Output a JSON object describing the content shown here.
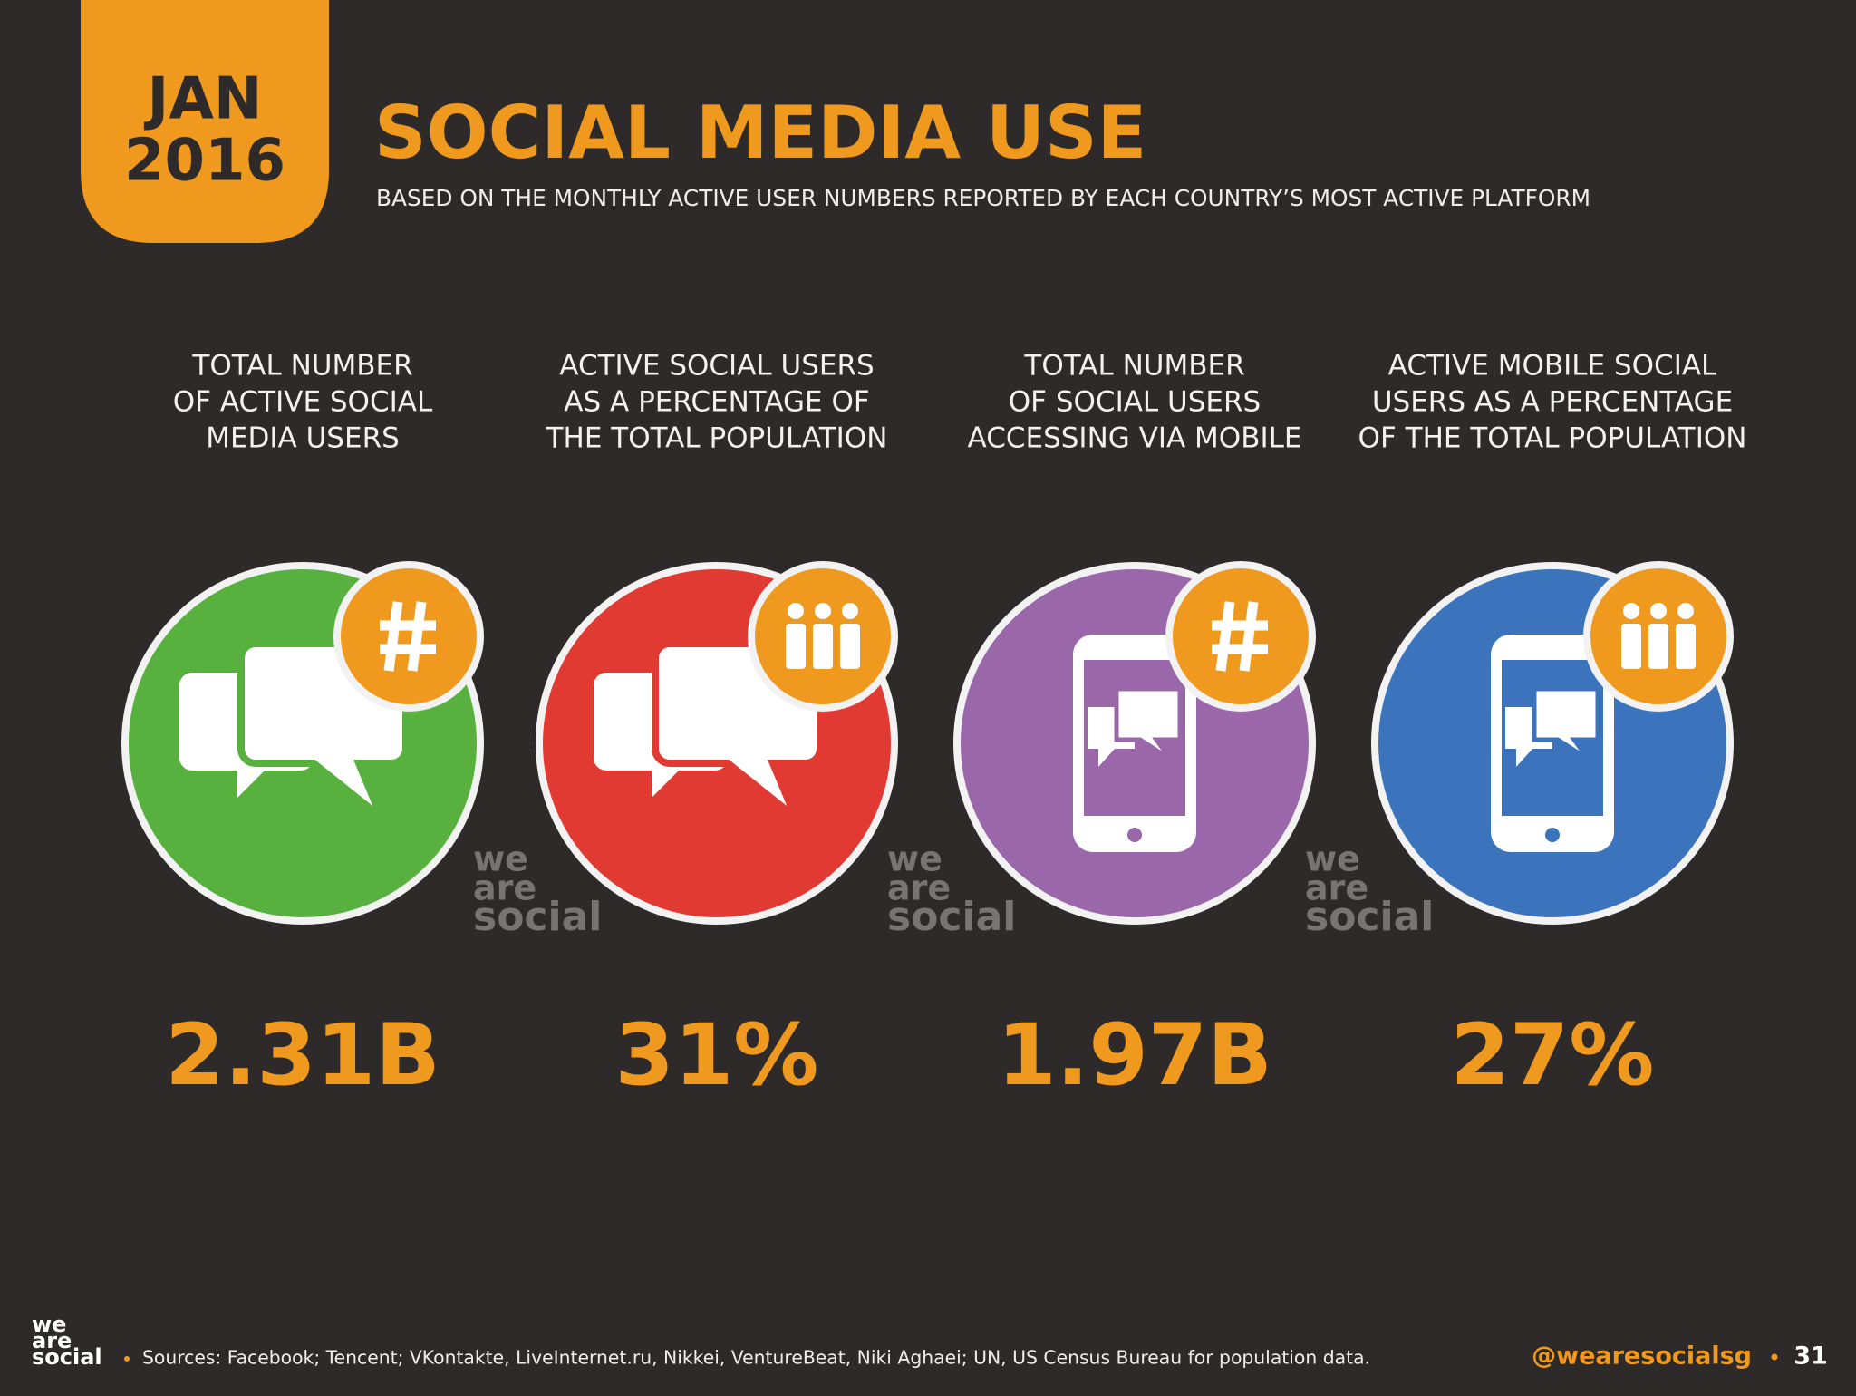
{
  "header": {
    "date": [
      "JAN",
      "2016"
    ],
    "title": "SOCIAL MEDIA USE",
    "subtitle": "BASED ON THE MONTHLY ACTIVE USER NUMBERS REPORTED BY EACH COUNTRY’S MOST ACTIVE PLATFORM"
  },
  "stats": [
    {
      "label": [
        "TOTAL NUMBER",
        "OF ACTIVE SOCIAL",
        "MEDIA USERS"
      ],
      "value": "2.31B"
    },
    {
      "label": [
        "ACTIVE SOCIAL USERS",
        "AS A PERCENTAGE OF",
        "THE TOTAL POPULATION"
      ],
      "value": "31%"
    },
    {
      "label": [
        "TOTAL NUMBER",
        "OF SOCIAL USERS",
        "ACCESSING VIA MOBILE"
      ],
      "value": "1.97B"
    },
    {
      "label": [
        "ACTIVE MOBILE SOCIAL",
        "USERS AS A PERCENTAGE",
        "OF THE TOTAL POPULATION"
      ],
      "value": "27%"
    }
  ],
  "logo": [
    "we",
    "are",
    "social"
  ],
  "footer": {
    "sources": "Sources: Facebook; Tencent; VKontakte, LiveInternet.ru, Nikkei, VentureBeat, Niki Aghaei; UN, US Census Bureau for population data.",
    "handle": "@wearesocialsg",
    "page": "31"
  }
}
